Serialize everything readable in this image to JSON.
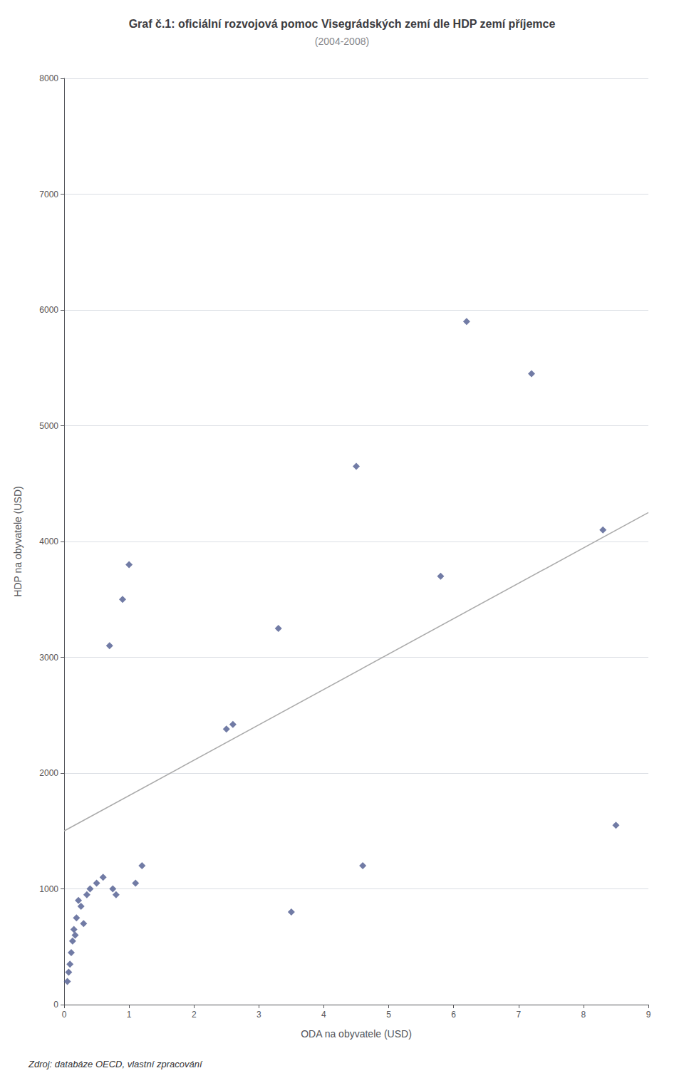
{
  "chart_data": {
    "type": "scatter",
    "title": "Graf č.1: oficiální rozvojová pomoc Visegrádských zemí dle HDP zemí příjemce",
    "subtitle": "(2004-2008)",
    "xlabel": "ODA na obyvatele (USD)",
    "ylabel": "HDP na obyvatele (USD)",
    "annotations": [
      "Zdroj: databáze OECD, vlastní zpracování"
    ],
    "series": [
      {
        "type": "scatter",
        "color": "#4e5a8e",
        "marker": "diamond",
        "x": [
          0.05,
          0.07,
          0.09,
          0.11,
          0.13,
          0.15,
          0.17,
          0.19,
          0.22,
          0.26,
          0.3,
          0.35,
          0.4,
          0.5,
          0.6,
          0.7,
          0.75,
          0.8,
          0.9,
          1.0,
          1.1,
          1.2,
          2.5,
          2.6,
          3.3,
          3.5,
          4.5,
          4.6,
          5.8,
          6.2,
          7.2,
          8.3,
          8.5
        ],
        "values": [
          200,
          280,
          350,
          450,
          550,
          650,
          600,
          750,
          900,
          850,
          700,
          950,
          1000,
          1050,
          1100,
          3100,
          1000,
          950,
          3500,
          3800,
          1050,
          1200,
          2380,
          2420,
          3250,
          800,
          4650,
          1200,
          3700,
          5900,
          5450,
          4100,
          1550
        ]
      },
      {
        "type": "line",
        "color": "#aaaaaa",
        "x": [
          0,
          9
        ],
        "values": [
          1500,
          4250
        ]
      }
    ],
    "xlim": [
      0,
      9
    ],
    "ylim": [
      0,
      8000
    ],
    "xticks": [
      0,
      1,
      2,
      3,
      4,
      5,
      6,
      7,
      8,
      9
    ],
    "yticks": [
      0,
      1000,
      2000,
      3000,
      4000,
      5000,
      6000,
      7000,
      8000
    ],
    "grid": "y"
  }
}
